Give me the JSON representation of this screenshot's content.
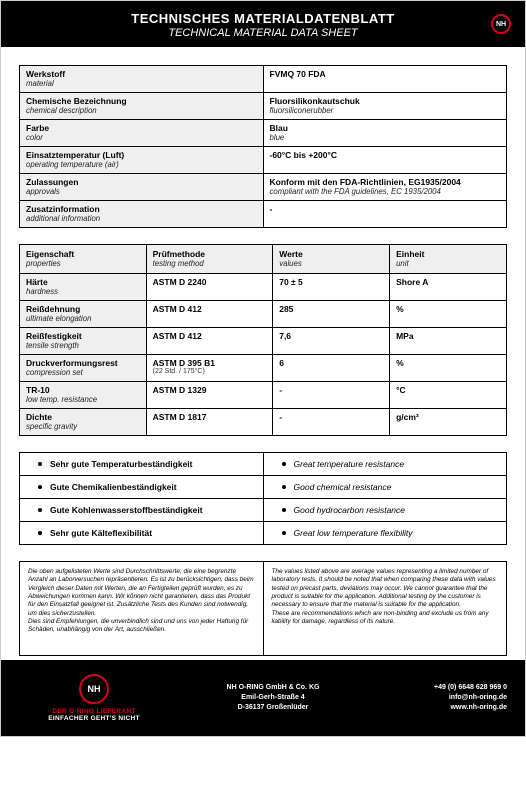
{
  "header": {
    "title_de": "TECHNISCHES MATERIALDATENBLATT",
    "title_en": "TECHNICAL MATERIAL DATA SHEET",
    "logo_text": "NH"
  },
  "info": [
    {
      "label_de": "Werkstoff",
      "label_en": "material",
      "value_de": "FVMQ 70 FDA",
      "value_en": ""
    },
    {
      "label_de": "Chemische Bezeichnung",
      "label_en": "chemical description",
      "value_de": "Fluorsilikonkautschuk",
      "value_en": "fluorsiliconerubber"
    },
    {
      "label_de": "Farbe",
      "label_en": "color",
      "value_de": "Blau",
      "value_en": "blue"
    },
    {
      "label_de": "Einsatztemperatur (Luft)",
      "label_en": "operating temperature (air)",
      "value_de": "-60°C bis +200°C",
      "value_en": ""
    },
    {
      "label_de": "Zulassungen",
      "label_en": "approvals",
      "value_de": "Konform mit den FDA-Richtlinien, EG1935/2004",
      "value_en": "compliant with the FDA guidelines, EC 1935/2004"
    },
    {
      "label_de": "Zusatzinformation",
      "label_en": "additional information",
      "value_de": "-",
      "value_en": ""
    }
  ],
  "props_header": {
    "c1_de": "Eigenschaft",
    "c1_en": "properties",
    "c2_de": "Prüfmethode",
    "c2_en": "testing method",
    "c3_de": "Werte",
    "c3_en": "values",
    "c4_de": "Einheit",
    "c4_en": "unit"
  },
  "props": [
    {
      "p_de": "Härte",
      "p_en": "hardness",
      "method": "ASTM D 2240",
      "method_sub": "",
      "value": "70 ± 5",
      "unit": "Shore A"
    },
    {
      "p_de": "Reißdehnung",
      "p_en": "ultimate elongation",
      "method": "ASTM D 412",
      "method_sub": "",
      "value": "285",
      "unit": "%"
    },
    {
      "p_de": "Reißfestigkeit",
      "p_en": "tensile strength",
      "method": "ASTM D 412",
      "method_sub": "",
      "value": "7,6",
      "unit": "MPa"
    },
    {
      "p_de": "Druckverformungsrest",
      "p_en": "compression set",
      "method": "ASTM D 395 B1",
      "method_sub": "(22 Std. / 175°C)",
      "value": "6",
      "unit": "%"
    },
    {
      "p_de": "TR-10",
      "p_en": "low temp. resistance",
      "method": "ASTM D 1329",
      "method_sub": "",
      "value": "-",
      "unit": "°C"
    },
    {
      "p_de": "Dichte",
      "p_en": "specific gravity",
      "method": "ASTM D 1817",
      "method_sub": "",
      "value": "-",
      "unit": "g/cm³"
    }
  ],
  "features": [
    {
      "de": "Sehr gute Temperaturbeständigkeit",
      "en": "Great temperature resistance"
    },
    {
      "de": "Gute Chemikalienbeständigkeit",
      "en": "Good chemical resistance"
    },
    {
      "de": "Gute Kohlenwasserstoffbeständigkeit",
      "en": "Good hydrocarbon resistance"
    },
    {
      "de": "Sehr gute Kälteflexibilität",
      "en": "Great low temperature flexibility"
    }
  ],
  "disclaimer": {
    "de": "Die oben aufgelisteten Werte sind Durchschnittswerte, die eine begrenzte Anzahl an Laborversuchen repräsentieren. Es ist zu berücksichtigen, dass beim Vergleich dieser Daten mit Werten, die an Fertigteilen geprüft wurden, es zu Abweichungen kommen kann. Wir können nicht garantieren, dass das Produkt für den Einsatzfall geeignet ist. Zusätzliche Tests des Kunden sind notwendig, um dies sicherzustellen.\nDies sind Empfehlungen, die unverbindlich sind und uns von jeder Haftung für Schäden, unabhängig von der Art, ausschließen.",
    "en": "The values listed above are average values representing a limited number of laboratory tests. It should be noted that when comparing these data with values tested on precast parts, deviations may occur. We cannot guarantee that the product is suitable for the application. Additional testing by the customer is necessary to ensure that the material is suitable for the application.\nThese are recommendations which are non-binding and exclude us from any liability for damage, regardless of its nature."
  },
  "footer": {
    "logo_text": "NH",
    "tag1": "DER O-RING LIEFERANT",
    "tag2": "EINFACHER GEHT'S NICHT",
    "company": "NH O-RING GmbH & Co. KG",
    "street": "Emil-Gerh-Straße 4",
    "city": "D-36137 Großenlüder",
    "phone": "+49 (0) 6648 628 969 0",
    "email": "info@nh-oring.de",
    "web": "www.nh-oring.de"
  }
}
